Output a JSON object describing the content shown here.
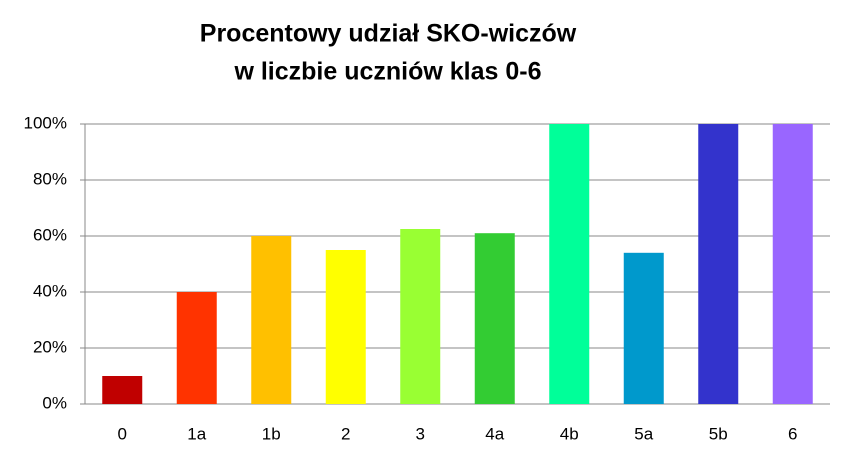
{
  "chart_data": {
    "type": "bar",
    "title": [
      "Procentowy udział SKO-wiczów",
      "w liczbie uczniów klas 0-6"
    ],
    "categories": [
      "0",
      "1a",
      "1b",
      "2",
      "3",
      "4a",
      "4b",
      "5a",
      "5b",
      "6"
    ],
    "values": [
      10,
      40,
      60,
      55,
      62.5,
      61,
      100,
      54,
      100,
      100
    ],
    "colors": [
      "#c00000",
      "#ff3300",
      "#ffc000",
      "#ffff00",
      "#99ff33",
      "#33cc33",
      "#00ff99",
      "#0099cc",
      "#3333cc",
      "#9966ff"
    ],
    "ylim": [
      0,
      100
    ],
    "yticks": [
      {
        "value": 0,
        "label": "0%"
      },
      {
        "value": 20,
        "label": "20%"
      },
      {
        "value": 40,
        "label": "40%"
      },
      {
        "value": 60,
        "label": "60%"
      },
      {
        "value": 80,
        "label": "80%"
      },
      {
        "value": 100,
        "label": "100%"
      }
    ],
    "grid": true
  }
}
